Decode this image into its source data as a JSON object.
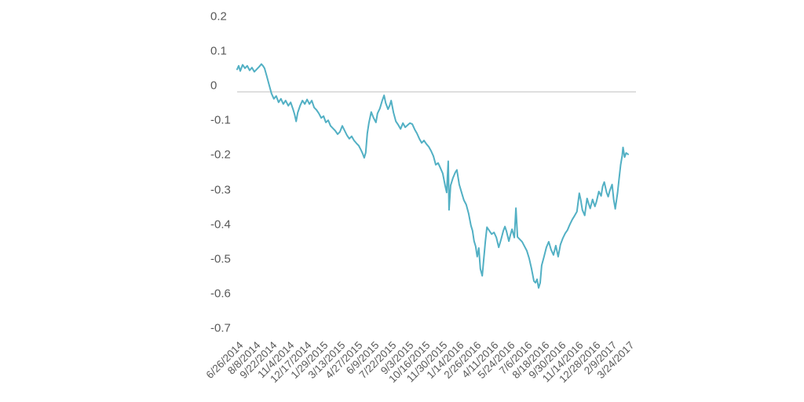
{
  "chart_data": {
    "type": "line",
    "title": "",
    "legend": "none",
    "grid": "zero-line-only",
    "y_axis": {
      "min": -0.7,
      "max": 0.2,
      "tick_step": 0.1
    },
    "y_tick_labels": [
      "0.2",
      "0.1",
      "0",
      "-0.1",
      "-0.2",
      "-0.3",
      "-0.4",
      "-0.5",
      "-0.6",
      "-0.7"
    ],
    "x_tick_labels": [
      "6/26/2014",
      "8/8/2014",
      "9/22/2014",
      "11/4/2014",
      "12/17/2014",
      "1/29/2015",
      "3/13/2015",
      "4/27/2015",
      "6/9/2015",
      "7/22/2015",
      "9/3/2015",
      "10/16/2015",
      "11/30/2015",
      "1/14/2016",
      "2/26/2016",
      "4/11/2016",
      "5/24/2016",
      "7/6/2016",
      "8/18/2016",
      "9/30/2016",
      "11/14/2016",
      "12/28/2016",
      "2/9/2017",
      "3/24/2017"
    ],
    "x_range": {
      "start": "6/26/2014",
      "end": "3/24/2017"
    },
    "points": [
      [
        0.0,
        0.065
      ],
      [
        0.004,
        0.075
      ],
      [
        0.008,
        0.06
      ],
      [
        0.014,
        0.078
      ],
      [
        0.02,
        0.068
      ],
      [
        0.026,
        0.075
      ],
      [
        0.032,
        0.062
      ],
      [
        0.038,
        0.07
      ],
      [
        0.044,
        0.058
      ],
      [
        0.05,
        0.065
      ],
      [
        0.056,
        0.072
      ],
      [
        0.062,
        0.08
      ],
      [
        0.066,
        0.075
      ],
      [
        0.07,
        0.068
      ],
      [
        0.076,
        0.045
      ],
      [
        0.082,
        0.02
      ],
      [
        0.088,
        -0.005
      ],
      [
        0.094,
        -0.02
      ],
      [
        0.1,
        -0.012
      ],
      [
        0.106,
        -0.03
      ],
      [
        0.112,
        -0.02
      ],
      [
        0.118,
        -0.035
      ],
      [
        0.124,
        -0.025
      ],
      [
        0.131,
        -0.04
      ],
      [
        0.137,
        -0.03
      ],
      [
        0.143,
        -0.05
      ],
      [
        0.147,
        -0.065
      ],
      [
        0.151,
        -0.085
      ],
      [
        0.155,
        -0.06
      ],
      [
        0.161,
        -0.04
      ],
      [
        0.167,
        -0.025
      ],
      [
        0.173,
        -0.035
      ],
      [
        0.179,
        -0.022
      ],
      [
        0.185,
        -0.035
      ],
      [
        0.191,
        -0.025
      ],
      [
        0.197,
        -0.045
      ],
      [
        0.203,
        -0.052
      ],
      [
        0.209,
        -0.062
      ],
      [
        0.215,
        -0.075
      ],
      [
        0.221,
        -0.07
      ],
      [
        0.227,
        -0.088
      ],
      [
        0.233,
        -0.082
      ],
      [
        0.239,
        -0.098
      ],
      [
        0.245,
        -0.105
      ],
      [
        0.251,
        -0.112
      ],
      [
        0.257,
        -0.122
      ],
      [
        0.263,
        -0.115
      ],
      [
        0.269,
        -0.098
      ],
      [
        0.275,
        -0.112
      ],
      [
        0.281,
        -0.125
      ],
      [
        0.287,
        -0.135
      ],
      [
        0.293,
        -0.128
      ],
      [
        0.299,
        -0.14
      ],
      [
        0.305,
        -0.148
      ],
      [
        0.311,
        -0.155
      ],
      [
        0.317,
        -0.168
      ],
      [
        0.321,
        -0.178
      ],
      [
        0.325,
        -0.19
      ],
      [
        0.329,
        -0.175
      ],
      [
        0.333,
        -0.12
      ],
      [
        0.337,
        -0.09
      ],
      [
        0.343,
        -0.058
      ],
      [
        0.349,
        -0.075
      ],
      [
        0.355,
        -0.088
      ],
      [
        0.359,
        -0.062
      ],
      [
        0.365,
        -0.048
      ],
      [
        0.371,
        -0.025
      ],
      [
        0.376,
        -0.01
      ],
      [
        0.38,
        -0.032
      ],
      [
        0.386,
        -0.05
      ],
      [
        0.39,
        -0.04
      ],
      [
        0.394,
        -0.025
      ],
      [
        0.4,
        -0.06
      ],
      [
        0.406,
        -0.085
      ],
      [
        0.412,
        -0.095
      ],
      [
        0.418,
        -0.107
      ],
      [
        0.424,
        -0.09
      ],
      [
        0.43,
        -0.102
      ],
      [
        0.436,
        -0.096
      ],
      [
        0.442,
        -0.09
      ],
      [
        0.448,
        -0.093
      ],
      [
        0.454,
        -0.108
      ],
      [
        0.46,
        -0.12
      ],
      [
        0.466,
        -0.135
      ],
      [
        0.472,
        -0.147
      ],
      [
        0.478,
        -0.14
      ],
      [
        0.484,
        -0.15
      ],
      [
        0.49,
        -0.158
      ],
      [
        0.496,
        -0.17
      ],
      [
        0.502,
        -0.185
      ],
      [
        0.508,
        -0.21
      ],
      [
        0.514,
        -0.205
      ],
      [
        0.52,
        -0.22
      ],
      [
        0.526,
        -0.235
      ],
      [
        0.532,
        -0.27
      ],
      [
        0.536,
        -0.29
      ],
      [
        0.54,
        -0.2
      ],
      [
        0.542,
        -0.34
      ],
      [
        0.546,
        -0.27
      ],
      [
        0.552,
        -0.248
      ],
      [
        0.558,
        -0.232
      ],
      [
        0.562,
        -0.225
      ],
      [
        0.568,
        -0.267
      ],
      [
        0.574,
        -0.29
      ],
      [
        0.58,
        -0.312
      ],
      [
        0.586,
        -0.325
      ],
      [
        0.592,
        -0.35
      ],
      [
        0.598,
        -0.385
      ],
      [
        0.602,
        -0.4
      ],
      [
        0.606,
        -0.43
      ],
      [
        0.61,
        -0.445
      ],
      [
        0.614,
        -0.475
      ],
      [
        0.618,
        -0.45
      ],
      [
        0.622,
        -0.51
      ],
      [
        0.627,
        -0.53
      ],
      [
        0.631,
        -0.48
      ],
      [
        0.635,
        -0.43
      ],
      [
        0.639,
        -0.39
      ],
      [
        0.645,
        -0.4
      ],
      [
        0.651,
        -0.41
      ],
      [
        0.657,
        -0.405
      ],
      [
        0.663,
        -0.42
      ],
      [
        0.669,
        -0.448
      ],
      [
        0.675,
        -0.425
      ],
      [
        0.681,
        -0.4
      ],
      [
        0.685,
        -0.388
      ],
      [
        0.689,
        -0.402
      ],
      [
        0.695,
        -0.43
      ],
      [
        0.699,
        -0.412
      ],
      [
        0.703,
        -0.396
      ],
      [
        0.709,
        -0.42
      ],
      [
        0.713,
        -0.335
      ],
      [
        0.717,
        -0.418
      ],
      [
        0.723,
        -0.425
      ],
      [
        0.729,
        -0.432
      ],
      [
        0.735,
        -0.445
      ],
      [
        0.741,
        -0.458
      ],
      [
        0.747,
        -0.48
      ],
      [
        0.753,
        -0.51
      ],
      [
        0.759,
        -0.545
      ],
      [
        0.763,
        -0.55
      ],
      [
        0.767,
        -0.54
      ],
      [
        0.771,
        -0.565
      ],
      [
        0.775,
        -0.55
      ],
      [
        0.779,
        -0.5
      ],
      [
        0.785,
        -0.475
      ],
      [
        0.791,
        -0.448
      ],
      [
        0.797,
        -0.432
      ],
      [
        0.803,
        -0.455
      ],
      [
        0.809,
        -0.47
      ],
      [
        0.815,
        -0.443
      ],
      [
        0.821,
        -0.475
      ],
      [
        0.827,
        -0.44
      ],
      [
        0.833,
        -0.422
      ],
      [
        0.839,
        -0.408
      ],
      [
        0.845,
        -0.398
      ],
      [
        0.851,
        -0.382
      ],
      [
        0.857,
        -0.368
      ],
      [
        0.863,
        -0.357
      ],
      [
        0.869,
        -0.345
      ],
      [
        0.875,
        -0.292
      ],
      [
        0.879,
        -0.312
      ],
      [
        0.883,
        -0.34
      ],
      [
        0.889,
        -0.356
      ],
      [
        0.895,
        -0.307
      ],
      [
        0.899,
        -0.322
      ],
      [
        0.903,
        -0.336
      ],
      [
        0.909,
        -0.31
      ],
      [
        0.915,
        -0.33
      ],
      [
        0.919,
        -0.316
      ],
      [
        0.925,
        -0.287
      ],
      [
        0.931,
        -0.3
      ],
      [
        0.935,
        -0.272
      ],
      [
        0.939,
        -0.26
      ],
      [
        0.945,
        -0.29
      ],
      [
        0.949,
        -0.302
      ],
      [
        0.953,
        -0.285
      ],
      [
        0.959,
        -0.267
      ],
      [
        0.963,
        -0.31
      ],
      [
        0.967,
        -0.337
      ],
      [
        0.973,
        -0.29
      ],
      [
        0.977,
        -0.25
      ],
      [
        0.981,
        -0.21
      ],
      [
        0.985,
        -0.183
      ],
      [
        0.987,
        -0.16
      ],
      [
        0.991,
        -0.188
      ],
      [
        0.995,
        -0.176
      ],
      [
        1.0,
        -0.18
      ]
    ]
  },
  "colors": {
    "line": "#52b0c4",
    "zero_gridline": "#bfbfbf",
    "axis_text": "#595959",
    "background": "#ffffff"
  }
}
